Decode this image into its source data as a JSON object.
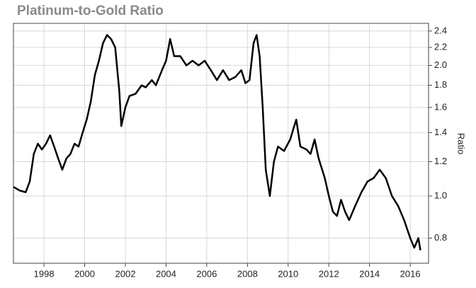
{
  "chart_data": {
    "type": "line",
    "title": "Platinum-to-Gold Ratio",
    "y_label": "Ratio",
    "ylog": true,
    "grid": true,
    "color": "#000000",
    "xlim": [
      1996.5,
      2016.9
    ],
    "xticks": [
      1998,
      2000,
      2002,
      2004,
      2006,
      2008,
      2010,
      2012,
      2014,
      2016
    ],
    "ylim": [
      0.7,
      2.5
    ],
    "yticks": [
      0.8,
      {
        "value": 1,
        "label": "1.0"
      },
      1.2,
      1.4,
      1.6,
      1.8,
      {
        "value": 2,
        "label": "2.0"
      },
      2.2,
      2.4
    ],
    "x": [
      1996.5,
      1996.8,
      1997.1,
      1997.3,
      1997.5,
      1997.7,
      1997.9,
      1998.1,
      1998.3,
      1998.5,
      1998.7,
      1998.9,
      1999.1,
      1999.3,
      1999.5,
      1999.7,
      1999.9,
      2000.1,
      2000.3,
      2000.5,
      2000.7,
      2000.9,
      2001.1,
      2001.3,
      2001.5,
      2001.7,
      2001.8,
      2002.0,
      2002.2,
      2002.5,
      2002.8,
      2003.0,
      2003.3,
      2003.5,
      2003.8,
      2004.0,
      2004.2,
      2004.4,
      2004.7,
      2005.0,
      2005.3,
      2005.6,
      2005.9,
      2006.2,
      2006.5,
      2006.8,
      2007.1,
      2007.4,
      2007.7,
      2007.9,
      2008.1,
      2008.3,
      2008.45,
      2008.6,
      2008.75,
      2008.9,
      2009.1,
      2009.3,
      2009.5,
      2009.8,
      2010.1,
      2010.3,
      2010.4,
      2010.6,
      2010.9,
      2011.1,
      2011.3,
      2011.5,
      2011.8,
      2012.0,
      2012.2,
      2012.4,
      2012.6,
      2012.8,
      2013.0,
      2013.3,
      2013.6,
      2013.9,
      2014.2,
      2014.5,
      2014.8,
      2015.1,
      2015.4,
      2015.7,
      2016.0,
      2016.2,
      2016.4,
      2016.5
    ],
    "values": [
      1.05,
      1.03,
      1.02,
      1.08,
      1.25,
      1.32,
      1.28,
      1.32,
      1.38,
      1.3,
      1.22,
      1.15,
      1.22,
      1.25,
      1.32,
      1.3,
      1.4,
      1.5,
      1.65,
      1.9,
      2.05,
      2.25,
      2.35,
      2.3,
      2.2,
      1.75,
      1.45,
      1.6,
      1.7,
      1.72,
      1.8,
      1.78,
      1.85,
      1.8,
      1.95,
      2.05,
      2.3,
      2.1,
      2.1,
      2.0,
      2.05,
      2.0,
      2.05,
      1.95,
      1.85,
      1.95,
      1.85,
      1.88,
      1.95,
      1.82,
      1.85,
      2.25,
      2.35,
      2.1,
      1.6,
      1.15,
      1.0,
      1.2,
      1.3,
      1.27,
      1.35,
      1.45,
      1.5,
      1.3,
      1.28,
      1.25,
      1.35,
      1.22,
      1.1,
      1.0,
      0.92,
      0.9,
      0.98,
      0.92,
      0.88,
      0.95,
      1.02,
      1.08,
      1.1,
      1.15,
      1.1,
      1.0,
      0.95,
      0.88,
      0.8,
      0.76,
      0.8,
      0.75
    ]
  }
}
